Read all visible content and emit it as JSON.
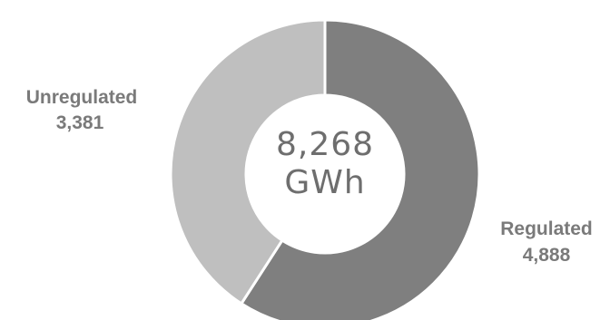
{
  "chart_data": {
    "type": "pie",
    "variant": "donut",
    "title": "",
    "categories": [
      "Regulated",
      "Unregulated"
    ],
    "values": [
      4888,
      3381
    ],
    "value_labels": [
      "4,888",
      "3,381"
    ],
    "colors": [
      "#7f7f7f",
      "#bfbfbf"
    ],
    "center_label": {
      "value": "8,268",
      "unit": "GWh"
    },
    "legend": "none"
  }
}
